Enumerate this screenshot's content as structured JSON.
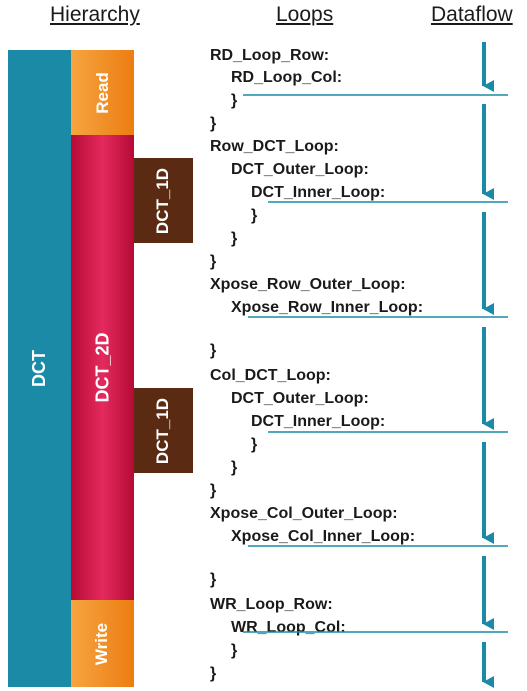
{
  "headers": {
    "hierarchy": "Hierarchy",
    "loops": "Loops",
    "dataflow": "Dataflow"
  },
  "blocks": {
    "dct": "DCT",
    "read": "Read",
    "dct_2d": "DCT_2D",
    "dct_1d_top": "DCT_1D",
    "dct_1d_bottom": "DCT_1D",
    "write": "Write"
  },
  "code_lines": [
    "RD_Loop_Row:",
    "RD_Loop_Col:",
    "}",
    "}",
    "Row_DCT_Loop:",
    "DCT_Outer_Loop:",
    "DCT_Inner_Loop:",
    "}",
    "}",
    "}",
    "Xpose_Row_Outer_Loop:",
    "Xpose_Row_Inner_Loop:",
    "}",
    "Col_DCT_Loop:",
    "DCT_Outer_Loop:",
    "DCT_Inner_Loop:",
    "}",
    "}",
    "}",
    "Xpose_Col_Outer_Loop:",
    "Xpose_Col_Inner_Loop:",
    "}",
    "WR_Loop_Row:",
    "WR_Loop_Col:",
    "}",
    "}"
  ],
  "colors": {
    "dct": "#1a8aa6",
    "read_write": "#f08a1e",
    "dct_2d": "#cc0f3f",
    "dct_1d": "#5a2a12",
    "flow": "#1a8aa6"
  }
}
